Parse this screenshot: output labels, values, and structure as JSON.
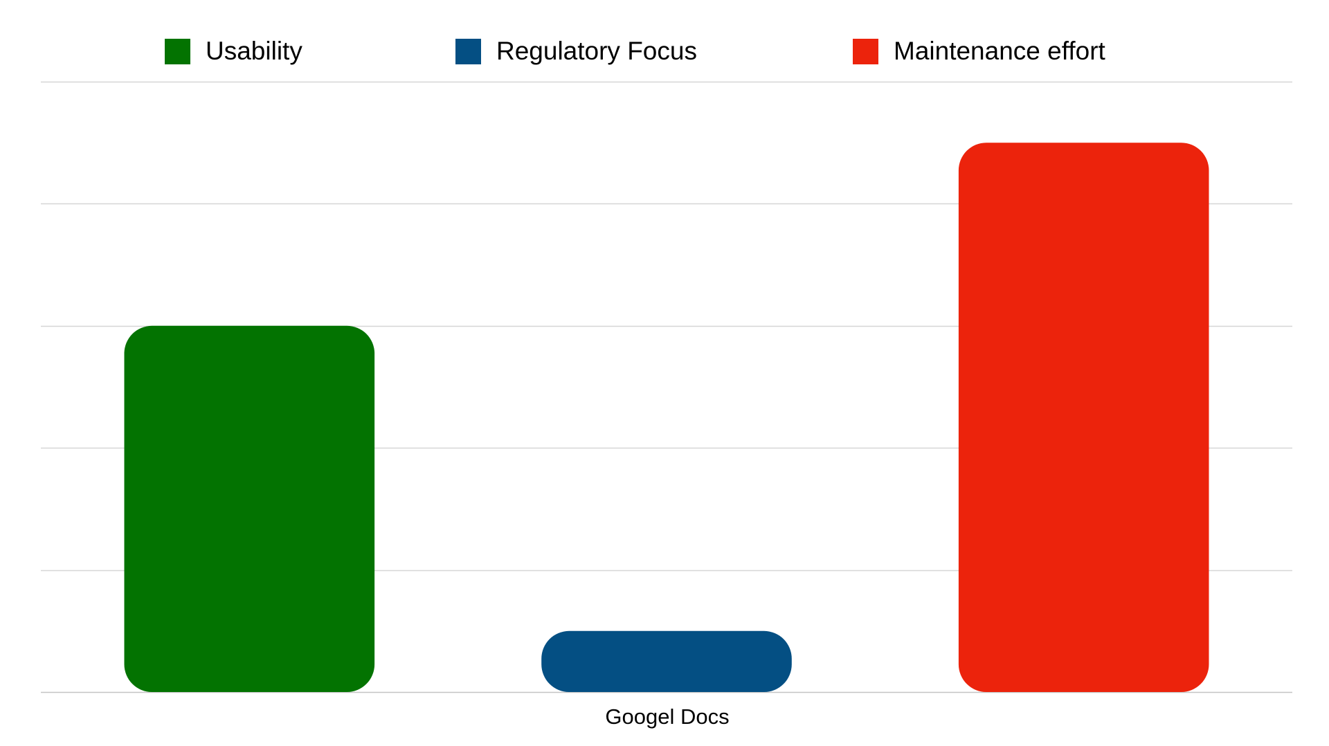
{
  "chart_data": {
    "type": "bar",
    "categories": [
      "Googel Docs"
    ],
    "series": [
      {
        "name": "Usability",
        "color": "#037301",
        "values": [
          3
        ]
      },
      {
        "name": "Regulatory Focus",
        "color": "#044f83",
        "values": [
          0.5
        ]
      },
      {
        "name": "Maintenance effort",
        "color": "#ec230c",
        "values": [
          4.5
        ]
      }
    ],
    "ylim": [
      0,
      5
    ],
    "yticks": [
      0,
      1,
      2,
      3,
      4,
      5
    ],
    "grid": true,
    "legend_position": "top",
    "title": "",
    "xlabel": "",
    "ylabel": ""
  }
}
